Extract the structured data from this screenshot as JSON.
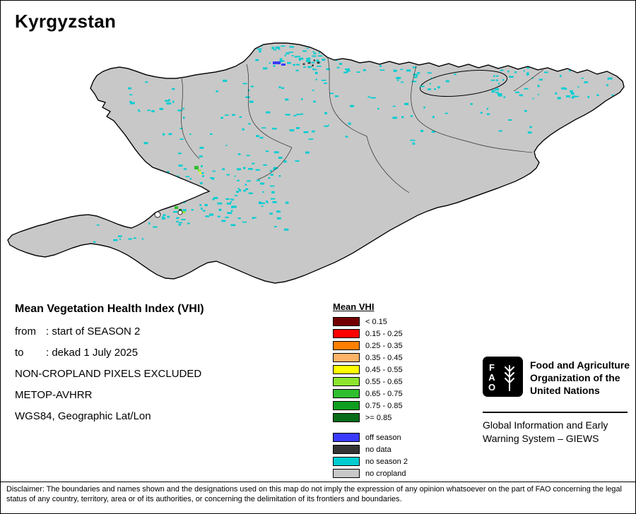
{
  "page": {
    "title": "Kyrgyzstan"
  },
  "info": {
    "heading": "Mean Vegetation Health Index (VHI)",
    "from_label": "from",
    "from_value": ": start of SEASON 2",
    "to_label": "to",
    "to_value": ": dekad 1 July 2025",
    "note_pixels": "NON-CROPLAND PIXELS EXCLUDED",
    "note_sensor": "METOP-AVHRR",
    "note_projection": "WGS84, Geographic Lat/Lon"
  },
  "legend": {
    "title": "Mean VHI",
    "classes": [
      {
        "label": "< 0.15",
        "color": "#730000"
      },
      {
        "label": "0.15 - 0.25",
        "color": "#ff0000"
      },
      {
        "label": "0.25 - 0.35",
        "color": "#ff8000"
      },
      {
        "label": "0.35 - 0.45",
        "color": "#ffb469"
      },
      {
        "label": "0.45 - 0.55",
        "color": "#ffff00"
      },
      {
        "label": "0.55 - 0.65",
        "color": "#8ce62e"
      },
      {
        "label": "0.65 - 0.75",
        "color": "#2fbe2f"
      },
      {
        "label": "0.75 - 0.85",
        "color": "#0f9e1f"
      },
      {
        "label": ">= 0.85",
        "color": "#086c18"
      }
    ],
    "extras": [
      {
        "label": "off season",
        "color": "#3b3bff"
      },
      {
        "label": "no data",
        "color": "#343434"
      },
      {
        "label": "no season 2",
        "color": "#00cdd2"
      },
      {
        "label": "no cropland",
        "color": "#c8c8c8"
      }
    ]
  },
  "branding": {
    "logo_letters": [
      "F",
      "A",
      "O"
    ],
    "org_name": "Food and Agriculture Organization of the United Nations",
    "giews": "Global Information and Early Warning System – GIEWS"
  },
  "disclaimer": "Disclaimer: The boundaries and names shown and the designations used on this map do not imply the expression of any opinion whatsoever on the part of FAO concerning the legal status of any country, territory, area or of its authorities, or concerning the delimitation of its frontiers and boundaries."
}
